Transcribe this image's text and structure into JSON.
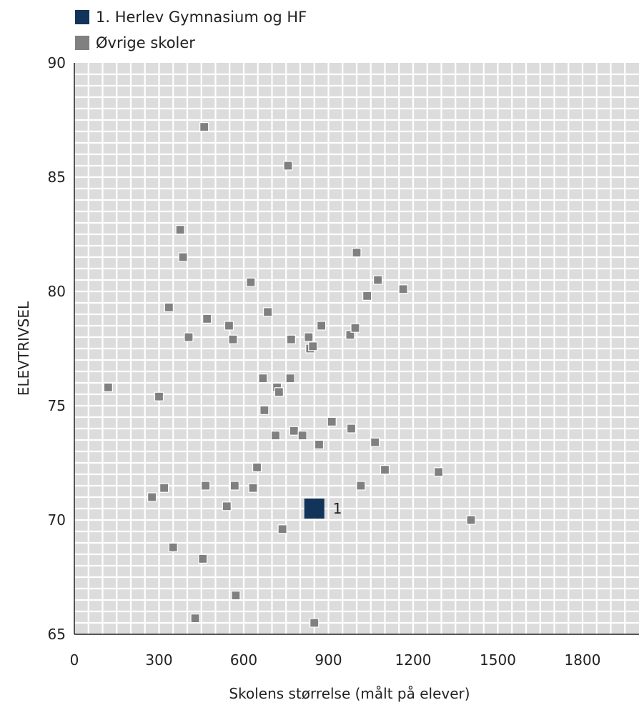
{
  "chart_data": {
    "type": "scatter",
    "xlabel": "Skolens størrelse (målt på elever)",
    "ylabel": "ELEVTRIVSEL",
    "xlim": [
      0,
      2000
    ],
    "ylim": [
      65,
      90
    ],
    "x_ticks": [
      0,
      300,
      600,
      900,
      1200,
      1500,
      1800
    ],
    "y_ticks": [
      65,
      70,
      75,
      80,
      85,
      90
    ],
    "grid": true,
    "legend_position": "top-left",
    "colors": {
      "highlight": "#12345a",
      "others": "#808080",
      "plot_bg": "#dcdcdc",
      "grid": "#ffffff"
    },
    "series": [
      {
        "name": "1. Herlev Gymnasium og HF",
        "color": "#12345a",
        "marker_label": "1",
        "points": [
          [
            850,
            70.5
          ]
        ]
      },
      {
        "name": "Øvrige skoler",
        "color": "#808080",
        "points": [
          [
            120,
            75.8
          ],
          [
            275,
            71.0
          ],
          [
            300,
            75.4
          ],
          [
            318,
            71.4
          ],
          [
            335,
            79.3
          ],
          [
            350,
            68.8
          ],
          [
            375,
            82.7
          ],
          [
            385,
            81.5
          ],
          [
            405,
            78.0
          ],
          [
            428,
            65.7
          ],
          [
            455,
            68.3
          ],
          [
            460,
            87.2
          ],
          [
            465,
            71.5
          ],
          [
            470,
            78.8
          ],
          [
            540,
            70.6
          ],
          [
            548,
            78.5
          ],
          [
            562,
            77.9
          ],
          [
            568,
            71.5
          ],
          [
            572,
            66.7
          ],
          [
            625,
            80.4
          ],
          [
            633,
            71.4
          ],
          [
            647,
            72.3
          ],
          [
            668,
            76.2
          ],
          [
            673,
            74.8
          ],
          [
            685,
            79.1
          ],
          [
            713,
            73.7
          ],
          [
            718,
            75.8
          ],
          [
            725,
            75.6
          ],
          [
            737,
            69.6
          ],
          [
            757,
            85.5
          ],
          [
            765,
            76.2
          ],
          [
            768,
            77.9
          ],
          [
            778,
            73.9
          ],
          [
            808,
            73.7
          ],
          [
            830,
            78.0
          ],
          [
            835,
            77.5
          ],
          [
            845,
            77.6
          ],
          [
            850,
            65.5
          ],
          [
            867,
            73.3
          ],
          [
            875,
            78.5
          ],
          [
            912,
            74.3
          ],
          [
            977,
            78.1
          ],
          [
            981,
            74.0
          ],
          [
            995,
            78.4
          ],
          [
            1000,
            81.7
          ],
          [
            1015,
            71.5
          ],
          [
            1037,
            79.8
          ],
          [
            1065,
            73.4
          ],
          [
            1075,
            80.5
          ],
          [
            1100,
            72.2
          ],
          [
            1165,
            80.1
          ],
          [
            1290,
            72.1
          ],
          [
            1405,
            70.0
          ]
        ]
      }
    ]
  }
}
